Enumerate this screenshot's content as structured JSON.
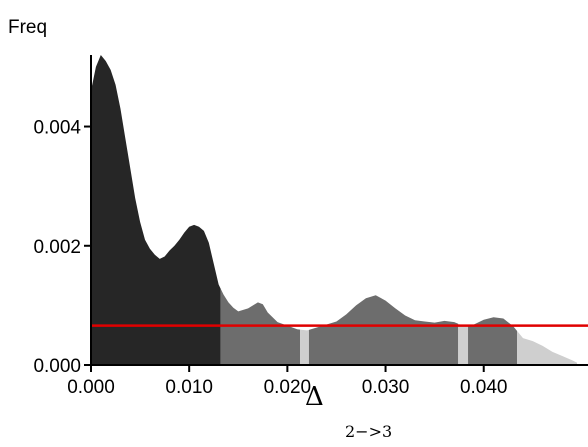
{
  "chart_data": {
    "type": "area",
    "title": "",
    "ylabel": "Freq",
    "xlabel": "Δ",
    "xlabel_subscript": "2−>3",
    "xlim": [
      0.0,
      0.0495
    ],
    "ylim": [
      0.0,
      0.0052
    ],
    "x_ticks": [
      0.0,
      0.01,
      0.02,
      0.03,
      0.04
    ],
    "x_tick_labels": [
      "0.000",
      "0.010",
      "0.020",
      "0.030",
      "0.040"
    ],
    "y_ticks": [
      0.0,
      0.002,
      0.004
    ],
    "y_tick_labels": [
      "0.000",
      "0.002",
      "0.004"
    ],
    "colors": {
      "dark": "#262626",
      "medium": "#6d6d6d",
      "light": "#cfcfcf",
      "reference_line": "#e00000"
    },
    "density_x": [
      0.0,
      0.0005,
      0.001,
      0.0015,
      0.002,
      0.0025,
      0.003,
      0.0035,
      0.004,
      0.0045,
      0.005,
      0.0055,
      0.006,
      0.0065,
      0.007,
      0.0075,
      0.008,
      0.0085,
      0.009,
      0.0095,
      0.01,
      0.0105,
      0.011,
      0.0115,
      0.012,
      0.0125,
      0.013,
      0.0135,
      0.014,
      0.0145,
      0.015,
      0.016,
      0.017,
      0.0175,
      0.018,
      0.019,
      0.02,
      0.021,
      0.022,
      0.023,
      0.024,
      0.025,
      0.026,
      0.027,
      0.028,
      0.029,
      0.03,
      0.031,
      0.032,
      0.033,
      0.034,
      0.035,
      0.036,
      0.037,
      0.038,
      0.039,
      0.04,
      0.041,
      0.042,
      0.043,
      0.044,
      0.045,
      0.046,
      0.047,
      0.048,
      0.049,
      0.0495
    ],
    "density_y": [
      0.0046,
      0.005,
      0.0052,
      0.0051,
      0.00495,
      0.0047,
      0.0043,
      0.0038,
      0.0033,
      0.0028,
      0.0024,
      0.0021,
      0.00195,
      0.00185,
      0.00178,
      0.00182,
      0.00192,
      0.002,
      0.0021,
      0.00222,
      0.00232,
      0.00235,
      0.00232,
      0.00225,
      0.00205,
      0.0017,
      0.00135,
      0.00118,
      0.00105,
      0.00096,
      0.0009,
      0.00095,
      0.00105,
      0.00102,
      0.00088,
      0.00072,
      0.00066,
      0.0006,
      0.00058,
      0.00063,
      0.00068,
      0.00073,
      0.00085,
      0.001,
      0.00112,
      0.00117,
      0.00108,
      0.00095,
      0.00083,
      0.00075,
      0.00073,
      0.00071,
      0.00074,
      0.00072,
      0.00065,
      0.00068,
      0.00076,
      0.0008,
      0.00078,
      0.00065,
      0.00045,
      0.0004,
      0.00032,
      0.00022,
      0.00015,
      8e-05,
      4e-05
    ],
    "regions": [
      {
        "shade": "dark",
        "from": 0.0,
        "to": 0.0132
      },
      {
        "shade": "medium",
        "from": 0.0132,
        "to": 0.0213
      },
      {
        "shade": "light",
        "from": 0.0213,
        "to": 0.0222
      },
      {
        "shade": "medium",
        "from": 0.0222,
        "to": 0.0374
      },
      {
        "shade": "light",
        "from": 0.0374,
        "to": 0.0384
      },
      {
        "shade": "medium",
        "from": 0.0384,
        "to": 0.0434
      },
      {
        "shade": "light",
        "from": 0.0434,
        "to": 0.0495
      }
    ],
    "reference_line_y": 0.00066
  }
}
